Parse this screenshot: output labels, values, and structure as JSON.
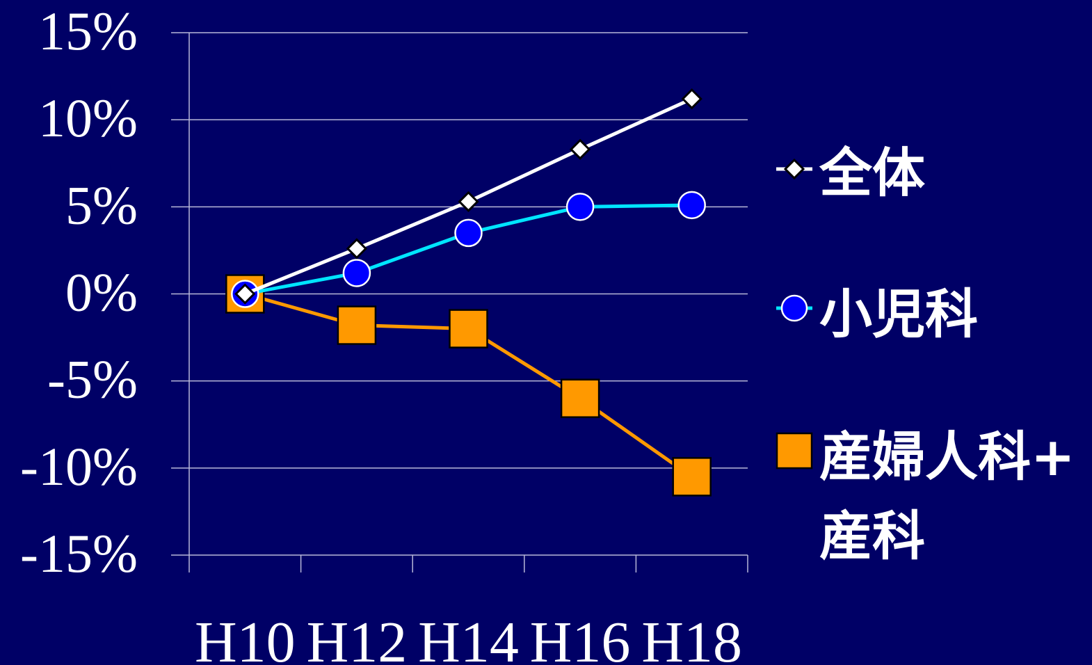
{
  "chart_data": {
    "type": "line",
    "categories": [
      "H10",
      "H12",
      "H14",
      "H16",
      "H18"
    ],
    "y_ticks": [
      "15%",
      "10%",
      "5%",
      "0%",
      "-5%",
      "-10%",
      "-15%"
    ],
    "ylim": [
      -15,
      15
    ],
    "grid": true,
    "legend_position": "right",
    "series": [
      {
        "name": "全体",
        "values": [
          0,
          2.6,
          5.3,
          8.3,
          11.2
        ],
        "color": "#ffffff",
        "marker": "diamond"
      },
      {
        "name": "小児科",
        "values": [
          0,
          1.2,
          3.5,
          5.0,
          5.1
        ],
        "color": "#00e5ff",
        "marker": "circle",
        "marker_color": "#0000ff"
      },
      {
        "name": "産婦人科+産科",
        "name_lines": [
          "産婦人科+",
          "産科"
        ],
        "values": [
          0,
          -1.8,
          -2.0,
          -6.0,
          -10.5
        ],
        "color": "#ff9900",
        "marker": "square"
      }
    ]
  }
}
